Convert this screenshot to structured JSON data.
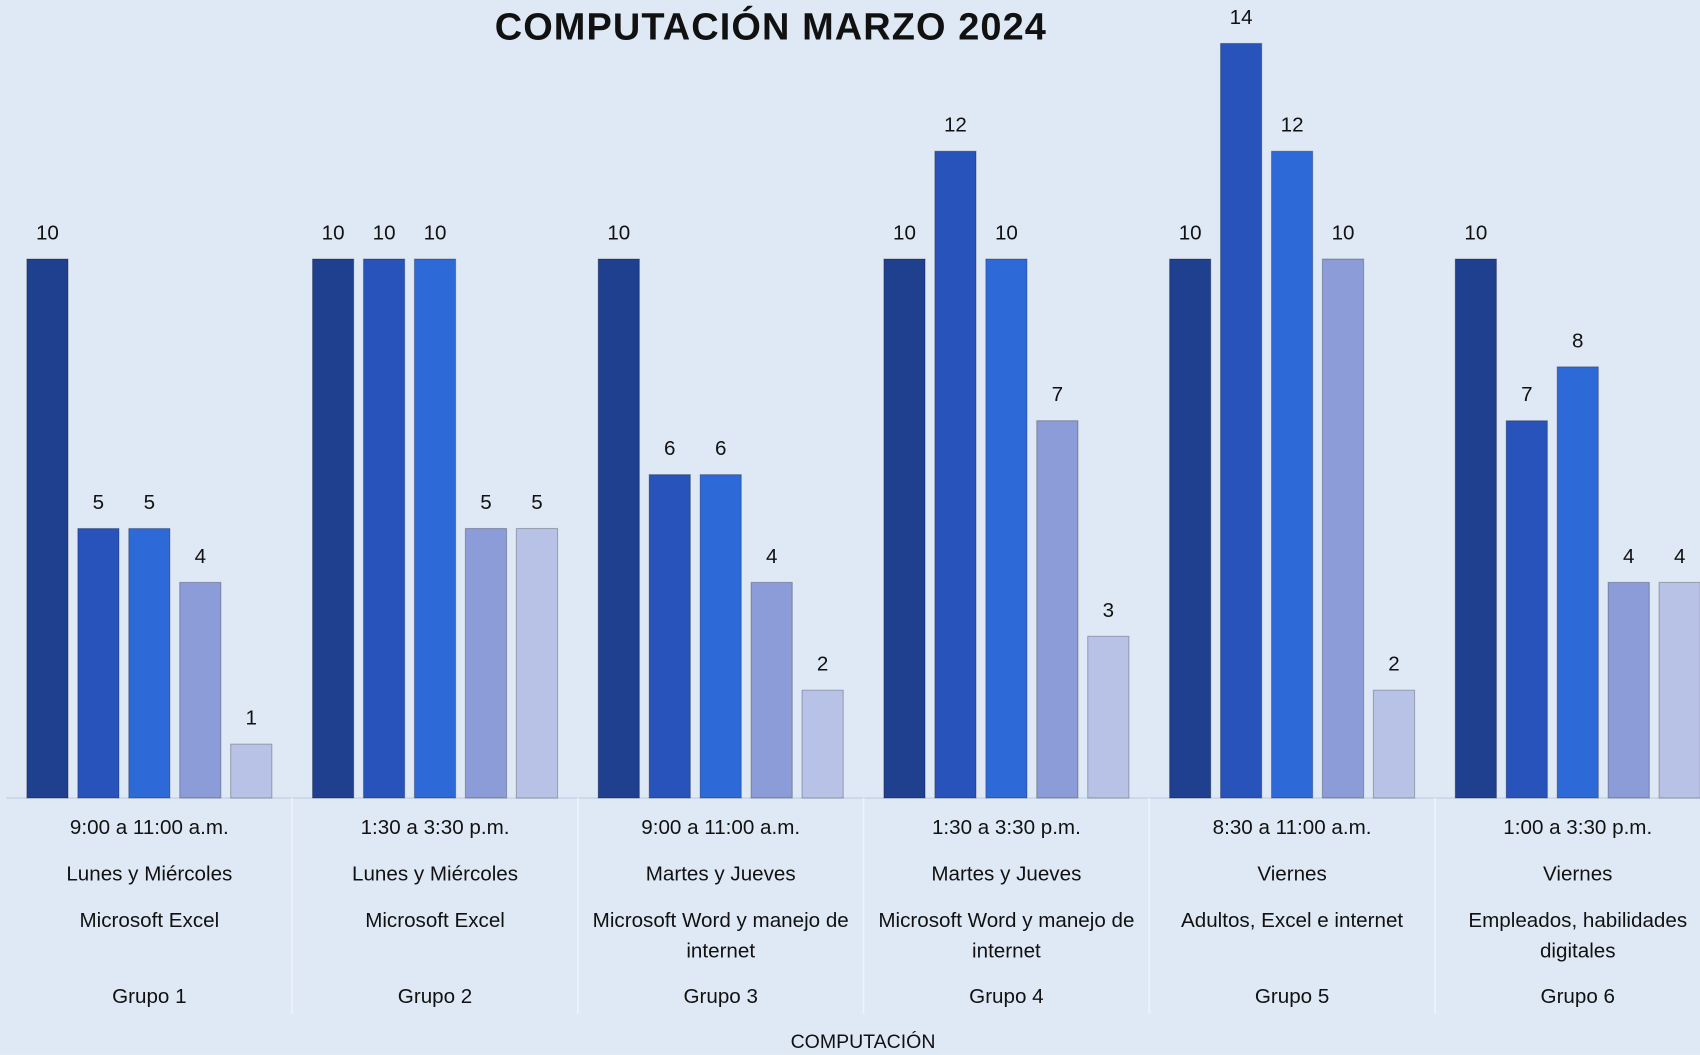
{
  "chart_data": {
    "type": "bar",
    "title": "COMPUTACIÓN MARZO 2024",
    "categories": [
      "Grupo 1",
      "Grupo 2",
      "Grupo 3",
      "Grupo 4",
      "Grupo 5",
      "Grupo 6"
    ],
    "schedules": [
      "9:00 a 11:00 a.m.",
      "1:30 a 3:30 p.m.",
      "9:00 a 11:00 a.m.",
      "1:30 a 3:30 p.m.",
      "8:30 a 11:00 a.m.",
      "1:00 a 3:30 p.m."
    ],
    "days": [
      "Lunes y Miércoles",
      "Lunes y Miércoles",
      "Martes y Jueves",
      "Martes y Jueves",
      "Viernes",
      "Viernes"
    ],
    "courses": [
      "Microsoft Excel",
      "Microsoft Excel",
      "Microsoft Word y manejo de internet",
      "Microsoft Word y manejo de internet",
      "Adultos, Excel e internet",
      "Empleados, habilidades digitales"
    ],
    "x_label": "COMPUTACIÓN",
    "series": [
      {
        "color": "#1f3f8f",
        "values": [
          10,
          10,
          10,
          10,
          10,
          10
        ]
      },
      {
        "color": "#2753bb",
        "values": [
          5,
          10,
          6,
          12,
          14,
          7
        ]
      },
      {
        "color": "#2e69d8",
        "values": [
          5,
          10,
          6,
          10,
          12,
          8
        ]
      },
      {
        "color": "#8b9cd8",
        "values": [
          4,
          5,
          4,
          7,
          10,
          4
        ]
      },
      {
        "color": "#b8c2e6",
        "values": [
          1,
          5,
          2,
          3,
          2,
          4
        ]
      }
    ],
    "ylim": [
      0,
      14
    ]
  }
}
